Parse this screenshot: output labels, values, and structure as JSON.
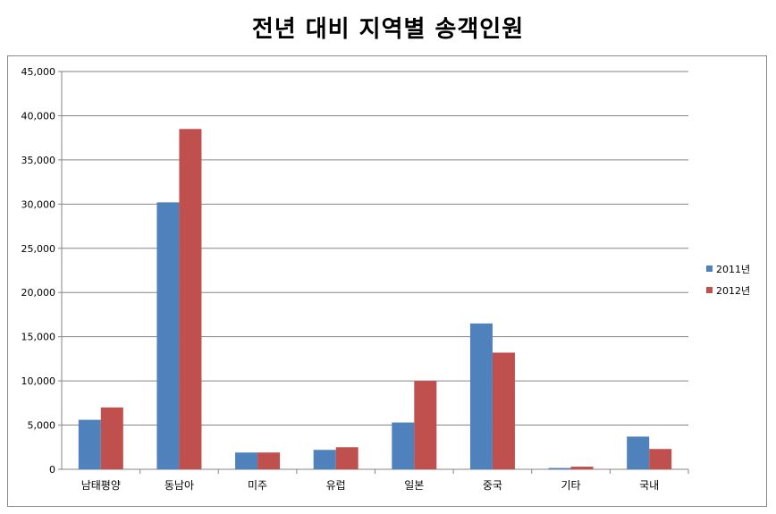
{
  "chart_data": {
    "type": "bar",
    "title": "전년 대비 지역별 송객인원",
    "categories": [
      "남태평양",
      "동남아",
      "미주",
      "유럽",
      "일본",
      "중국",
      "기타",
      "국내"
    ],
    "series": [
      {
        "name": "2011년",
        "color": "#4F81BD",
        "values": [
          5600,
          30200,
          1900,
          2200,
          5300,
          16500,
          150,
          3700
        ]
      },
      {
        "name": "2012년",
        "color": "#C0504D",
        "values": [
          7000,
          38500,
          1900,
          2500,
          10000,
          13200,
          300,
          2300
        ]
      }
    ],
    "ylim": [
      0,
      45000
    ],
    "yticks": [
      "0",
      "5,000",
      "10,000",
      "15,000",
      "20,000",
      "25,000",
      "30,000",
      "35,000",
      "40,000",
      "45,000"
    ],
    "ytick_values": [
      0,
      5000,
      10000,
      15000,
      20000,
      25000,
      30000,
      35000,
      40000,
      45000
    ],
    "grid": true,
    "legend": "right"
  }
}
